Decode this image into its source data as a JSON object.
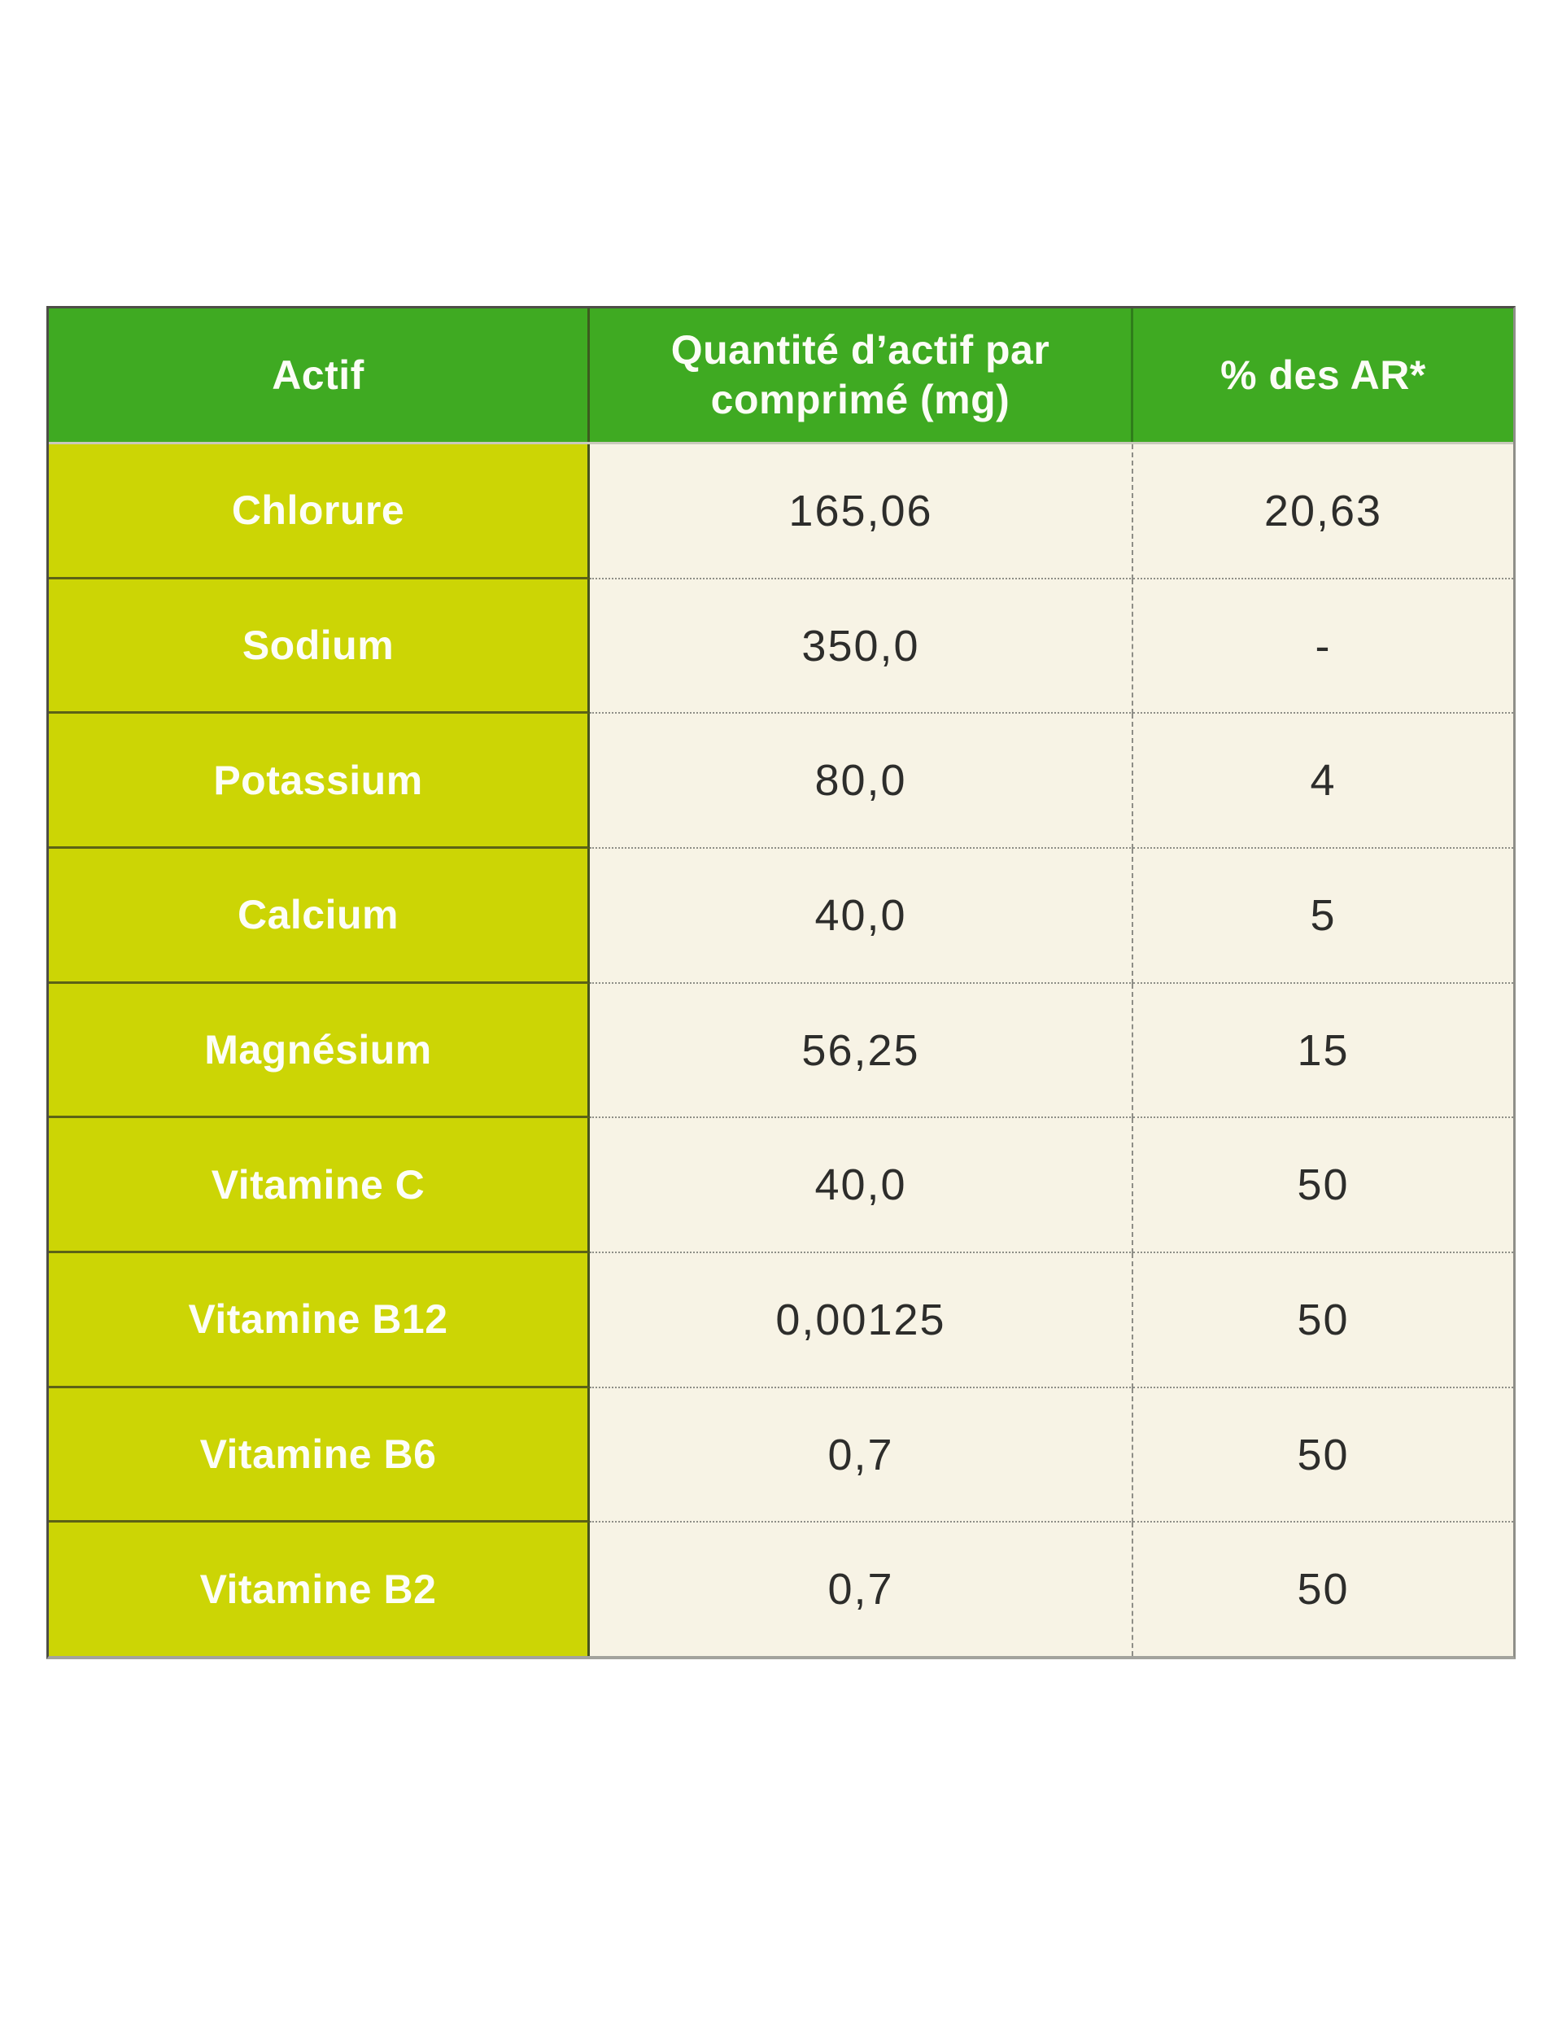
{
  "colors": {
    "header_green": "#3faa22",
    "row_label_yellow": "#ccd505",
    "data_cell_cream": "#f7f3e5",
    "header_text": "#fcfdf6",
    "value_text": "#2d2d2b",
    "outer_border_dark": "#4d4d47",
    "outer_border_light": "#a3a39d",
    "olive_separator": "#5c6216",
    "dotted_separator": "#8e8e87"
  },
  "table": {
    "header": {
      "actif": "Actif",
      "quantity": "Quantité d’actif par comprimé (mg)",
      "ar": "% des AR*"
    },
    "rows": [
      {
        "label": "Chlorure",
        "quantity": "165,06",
        "ar": "20,63"
      },
      {
        "label": "Sodium",
        "quantity": "350,0",
        "ar": "-"
      },
      {
        "label": "Potassium",
        "quantity": "80,0",
        "ar": "4"
      },
      {
        "label": "Calcium",
        "quantity": "40,0",
        "ar": "5"
      },
      {
        "label": "Magnésium",
        "quantity": "56,25",
        "ar": "15"
      },
      {
        "label": "Vitamine C",
        "quantity": "40,0",
        "ar": "50"
      },
      {
        "label": "Vitamine B12",
        "quantity": "0,00125",
        "ar": "50"
      },
      {
        "label": "Vitamine B6",
        "quantity": "0,7",
        "ar": "50"
      },
      {
        "label": "Vitamine B2",
        "quantity": "0,7",
        "ar": "50"
      }
    ]
  },
  "chart_data": {
    "type": "table",
    "title": "",
    "columns": [
      "Actif",
      "Quantité d’actif par comprimé (mg)",
      "% des AR*"
    ],
    "rows": [
      [
        "Chlorure",
        "165,06",
        "20,63"
      ],
      [
        "Sodium",
        "350,0",
        "-"
      ],
      [
        "Potassium",
        "80,0",
        "4"
      ],
      [
        "Calcium",
        "40,0",
        "5"
      ],
      [
        "Magnésium",
        "56,25",
        "15"
      ],
      [
        "Vitamine C",
        "40,0",
        "50"
      ],
      [
        "Vitamine B12",
        "0,00125",
        "50"
      ],
      [
        "Vitamine B6",
        "0,7",
        "50"
      ],
      [
        "Vitamine B2",
        "0,7",
        "50"
      ]
    ]
  }
}
